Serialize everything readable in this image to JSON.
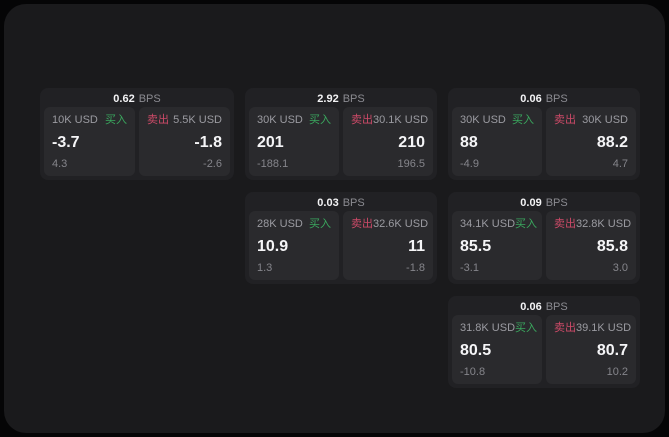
{
  "theme": {
    "outer_background": "#050506",
    "panel_background": "#1a1a1c",
    "card_background": "#212124",
    "subpanel_background": "#2a2a2d",
    "text_primary": "#f5f5f7",
    "text_secondary": "#8b8b91",
    "buy_color": "#3aa75e",
    "sell_color": "#cd4a68"
  },
  "labels": {
    "bps_unit": "BPS",
    "buy": "买入",
    "sell": "卖出"
  },
  "cards": [
    {
      "col": 1,
      "row": 1,
      "bps": "0.62",
      "buy": {
        "amount": "10K USD",
        "price": "-3.7",
        "delta": "4.3"
      },
      "sell": {
        "amount": "5.5K USD",
        "price": "-1.8",
        "delta": "-2.6"
      }
    },
    {
      "col": 2,
      "row": 1,
      "bps": "2.92",
      "buy": {
        "amount": "30K USD",
        "price": "201",
        "delta": "-188.1"
      },
      "sell": {
        "amount": "30.1K USD",
        "price": "210",
        "delta": "196.5"
      }
    },
    {
      "col": 3,
      "row": 1,
      "bps": "0.06",
      "buy": {
        "amount": "30K USD",
        "price": "88",
        "delta": "-4.9"
      },
      "sell": {
        "amount": "30K USD",
        "price": "88.2",
        "delta": "4.7"
      }
    },
    {
      "col": 2,
      "row": 2,
      "bps": "0.03",
      "buy": {
        "amount": "28K USD",
        "price": "10.9",
        "delta": "1.3"
      },
      "sell": {
        "amount": "32.6K USD",
        "price": "11",
        "delta": "-1.8"
      }
    },
    {
      "col": 3,
      "row": 2,
      "bps": "0.09",
      "buy": {
        "amount": "34.1K USD",
        "price": "85.5",
        "delta": "-3.1"
      },
      "sell": {
        "amount": "32.8K USD",
        "price": "85.8",
        "delta": "3.0"
      }
    },
    {
      "col": 3,
      "row": 3,
      "bps": "0.06",
      "buy": {
        "amount": "31.8K USD",
        "price": "80.5",
        "delta": "-10.8"
      },
      "sell": {
        "amount": "39.1K USD",
        "price": "80.7",
        "delta": "10.2"
      }
    }
  ]
}
